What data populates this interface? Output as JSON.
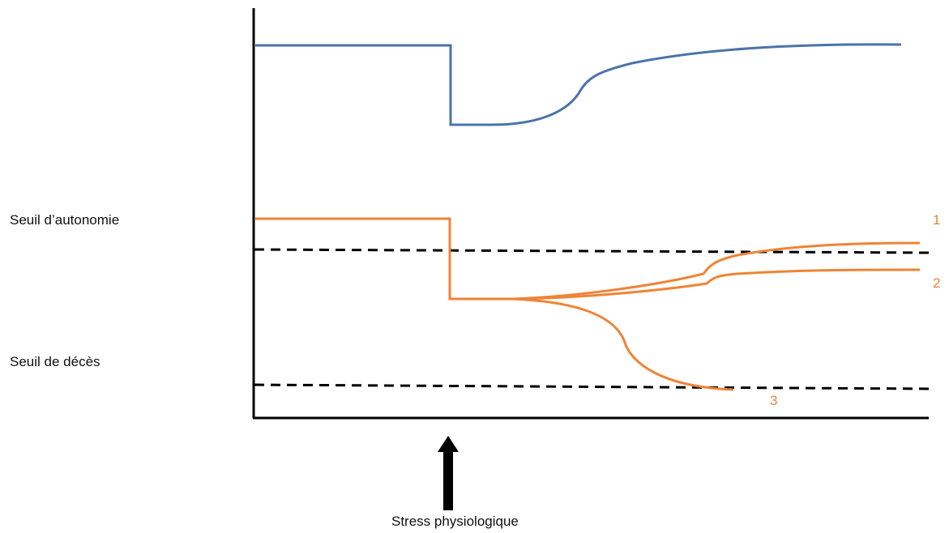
{
  "labels": {
    "autonomy_threshold": "Seuil d’autonomie",
    "death_threshold": "Seuil de décès",
    "stress": "Stress physiologique"
  },
  "curve_numbers": {
    "one": "1",
    "two": "2",
    "three": "3"
  },
  "colors": {
    "reserve_curve": "#4a74a8",
    "patient_curves": "#ee8436",
    "axes": "#000000",
    "thresholds": "#000000"
  },
  "icons": {
    "stress_marker": "arrow-up-icon"
  }
}
